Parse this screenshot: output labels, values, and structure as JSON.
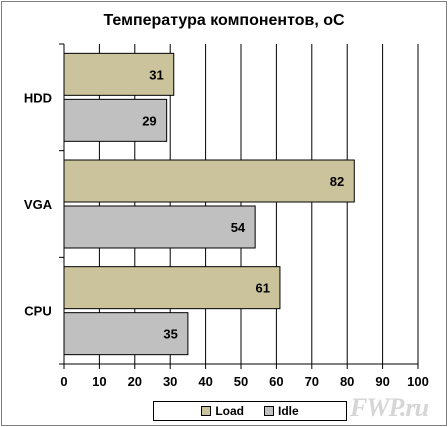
{
  "chart_data": {
    "type": "bar",
    "orientation": "horizontal",
    "title": "Температура компонентов, оС",
    "categories": [
      "HDD",
      "VGA",
      "CPU"
    ],
    "series": [
      {
        "name": "Load",
        "values": [
          31,
          82,
          61
        ],
        "color": "#cbc39b"
      },
      {
        "name": "Idle",
        "values": [
          29,
          54,
          35
        ],
        "color": "#c0c0c0"
      }
    ],
    "xlim": [
      0,
      100
    ],
    "xticks": [
      "0",
      "10",
      "20",
      "30",
      "40",
      "50",
      "60",
      "70",
      "80",
      "90",
      "100"
    ],
    "grid": true,
    "legend_position": "bottom"
  },
  "watermark": "FWP.ru"
}
